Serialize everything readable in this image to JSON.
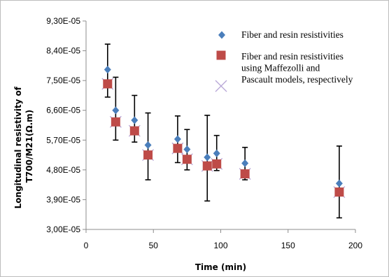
{
  "chart_data": {
    "type": "scatter",
    "xlabel": "Time (min)",
    "ylabel_lines": [
      "Longitudinal resistivity of",
      "T700/M21(Ω.m)"
    ],
    "xlim": [
      0,
      200
    ],
    "ylim": [
      3e-05,
      9.3e-05
    ],
    "x_ticks": [
      0,
      50,
      100,
      150,
      200
    ],
    "y_ticks": [
      3e-05,
      3.9e-05,
      4.8e-05,
      5.7e-05,
      6.6e-05,
      7.5e-05,
      8.4e-05,
      9.3e-05
    ],
    "x_tick_labels": [
      "0",
      "50",
      "100",
      "150",
      "200"
    ],
    "y_tick_labels": [
      "3,00E-05",
      "3,90E-05",
      "4,80E-05",
      "5,70E-05",
      "6,60E-05",
      "7,50E-05",
      "8,40E-05",
      "9,30E-05"
    ],
    "grid": false,
    "legend_position": "top-right",
    "series": [
      {
        "name": "Fiber and resin resistivities",
        "marker": "diamond",
        "color": "#4a7ebb",
        "points": [
          {
            "x": 16,
            "y": 7.83e-05,
            "err_low": 7e-05,
            "err_high": 8.6e-05
          },
          {
            "x": 22,
            "y": 6.6e-05,
            "err_low": 5.7e-05,
            "err_high": 7.6e-05
          },
          {
            "x": 36,
            "y": 6.3e-05,
            "err_low": 5.64e-05,
            "err_high": 7.05e-05
          },
          {
            "x": 46,
            "y": 5.55e-05,
            "err_low": 4.5e-05,
            "err_high": 6.52e-05
          },
          {
            "x": 68,
            "y": 5.73e-05,
            "err_low": 5.02e-05,
            "err_high": 6.43e-05
          },
          {
            "x": 75,
            "y": 5.42e-05,
            "err_low": 4.8e-05,
            "err_high": 6.02e-05
          },
          {
            "x": 90,
            "y": 5.18e-05,
            "err_low": 3.86e-05,
            "err_high": 6.45e-05
          },
          {
            "x": 97,
            "y": 5.3e-05,
            "err_low": 4.78e-05,
            "err_high": 5.84e-05
          },
          {
            "x": 118,
            "y": 5e-05,
            "err_low": 4.5e-05,
            "err_high": 5.48e-05
          },
          {
            "x": 188,
            "y": 4.39e-05,
            "err_low": 3.35e-05,
            "err_high": 5.52e-05
          }
        ]
      },
      {
        "name_lines": [
          "Fiber and resin resistivities",
          "using Maffezolli and",
          "Pascault models, respectively"
        ],
        "marker": "square",
        "color": "#be4b48",
        "points": [
          {
            "x": 16,
            "y": 7.4e-05
          },
          {
            "x": 22,
            "y": 6.25e-05
          },
          {
            "x": 36,
            "y": 5.98e-05
          },
          {
            "x": 46,
            "y": 5.25e-05
          },
          {
            "x": 68,
            "y": 5.45e-05
          },
          {
            "x": 75,
            "y": 5.12e-05
          },
          {
            "x": 90,
            "y": 4.92e-05
          },
          {
            "x": 97,
            "y": 4.98e-05
          },
          {
            "x": 118,
            "y": 4.68e-05
          },
          {
            "x": 188,
            "y": 4.13e-05
          }
        ]
      },
      {
        "marker": "x",
        "color": "#b7a6d6",
        "points": [
          {
            "x": 16,
            "y": 7.4e-05
          },
          {
            "x": 22,
            "y": 6.25e-05
          },
          {
            "x": 36,
            "y": 5.98e-05
          },
          {
            "x": 46,
            "y": 5.25e-05
          },
          {
            "x": 68,
            "y": 5.45e-05
          },
          {
            "x": 75,
            "y": 5.12e-05
          },
          {
            "x": 90,
            "y": 4.92e-05
          },
          {
            "x": 97,
            "y": 4.98e-05
          },
          {
            "x": 118,
            "y": 4.68e-05
          },
          {
            "x": 188,
            "y": 4.13e-05
          }
        ]
      }
    ]
  }
}
